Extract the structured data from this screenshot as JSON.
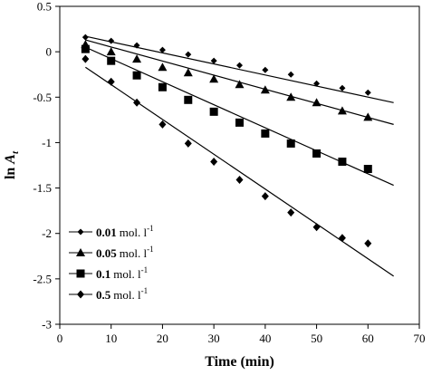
{
  "chart_data": {
    "type": "scatter",
    "xlabel": "Time (min)",
    "ylabel_main": "ln ",
    "ylabel_var": "A",
    "ylabel_sub": "t",
    "xlim": [
      0,
      70
    ],
    "ylim": [
      -3,
      0.5
    ],
    "x_ticks": [
      0,
      10,
      20,
      30,
      40,
      50,
      60,
      70
    ],
    "y_ticks": [
      0.5,
      0,
      -0.5,
      -1,
      -1.5,
      -2,
      -2.5,
      -3
    ],
    "x_tick_labels": [
      "0",
      "10",
      "20",
      "30",
      "40",
      "50",
      "60",
      "70"
    ],
    "y_tick_labels": [
      "0.5",
      "0",
      "-0.5",
      "-1",
      "-1.5",
      "-2",
      "-2.5",
      "-3"
    ],
    "grid": false,
    "legend_position": "bottom-left",
    "x": [
      5,
      10,
      15,
      20,
      25,
      30,
      35,
      40,
      45,
      50,
      55,
      60
    ],
    "series": [
      {
        "conc": "0.01",
        "unit": "mol. l",
        "unit_exp": "-1",
        "marker": "diamond-small",
        "values": [
          0.16,
          0.12,
          0.07,
          0.02,
          -0.03,
          -0.1,
          -0.15,
          -0.2,
          -0.25,
          -0.35,
          -0.4,
          -0.45
        ],
        "fit": [
          [
            5,
            0.17
          ],
          [
            65,
            -0.56
          ]
        ]
      },
      {
        "conc": "0.05",
        "unit": "mol. l",
        "unit_exp": "-1",
        "marker": "triangle",
        "values": [
          0.08,
          0.0,
          -0.08,
          -0.17,
          -0.23,
          -0.3,
          -0.36,
          -0.42,
          -0.5,
          -0.56,
          -0.65,
          -0.72
        ],
        "fit": [
          [
            5,
            0.13
          ],
          [
            65,
            -0.8
          ]
        ]
      },
      {
        "conc": "0.1",
        "unit": "mol. l",
        "unit_exp": "-1",
        "marker": "square",
        "values": [
          0.03,
          -0.1,
          -0.26,
          -0.39,
          -0.53,
          -0.66,
          -0.78,
          -0.9,
          -1.01,
          -1.12,
          -1.21,
          -1.29
        ],
        "fit": [
          [
            5,
            0.05
          ],
          [
            65,
            -1.47
          ]
        ]
      },
      {
        "conc": "0.5",
        "unit": "mol. l",
        "unit_exp": "-1",
        "marker": "diamond",
        "values": [
          -0.08,
          -0.33,
          -0.56,
          -0.8,
          -1.01,
          -1.21,
          -1.41,
          -1.59,
          -1.77,
          -1.93,
          -2.05,
          -2.11
        ],
        "fit": [
          [
            5,
            -0.17
          ],
          [
            65,
            -2.47
          ]
        ]
      }
    ]
  }
}
